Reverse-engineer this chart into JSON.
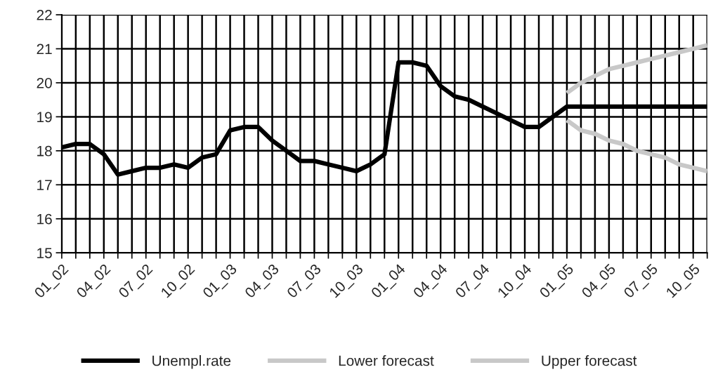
{
  "chart_data": {
    "type": "line",
    "categories": [
      "01_02",
      null,
      null,
      "04_02",
      null,
      null,
      "07_02",
      null,
      null,
      "10_02",
      null,
      null,
      "01_03",
      null,
      null,
      "04_03",
      null,
      null,
      "07_03",
      null,
      null,
      "10_03",
      null,
      null,
      "01_04",
      null,
      null,
      "04_04",
      null,
      null,
      "07_04",
      null,
      null,
      "10_04",
      null,
      null,
      "01_05",
      null,
      null,
      "04_05",
      null,
      null,
      "07_05",
      null,
      null,
      "10_05",
      null
    ],
    "series": [
      {
        "name": "Unempl.rate",
        "color": "#000000",
        "values": [
          18.1,
          18.2,
          18.2,
          17.9,
          17.3,
          17.4,
          17.5,
          17.5,
          17.6,
          17.5,
          17.8,
          17.9,
          18.6,
          18.7,
          18.7,
          18.3,
          18.0,
          17.7,
          17.7,
          17.6,
          17.5,
          17.4,
          17.6,
          17.9,
          20.6,
          20.6,
          20.5,
          19.9,
          19.6,
          19.5,
          19.3,
          19.1,
          18.9,
          18.7,
          18.7,
          19.0,
          19.3,
          19.3,
          19.3,
          19.3,
          19.3,
          19.3,
          19.3,
          19.3,
          19.3,
          19.3,
          19.3
        ]
      },
      {
        "name": "Lower forecast",
        "color": "#c8c8c8",
        "values": [
          null,
          null,
          null,
          null,
          null,
          null,
          null,
          null,
          null,
          null,
          null,
          null,
          null,
          null,
          null,
          null,
          null,
          null,
          null,
          null,
          null,
          null,
          null,
          null,
          null,
          null,
          null,
          null,
          null,
          null,
          null,
          null,
          null,
          null,
          null,
          null,
          18.9,
          18.6,
          18.5,
          18.3,
          18.2,
          18.0,
          17.9,
          17.8,
          17.6,
          17.5,
          17.4
        ]
      },
      {
        "name": "Upper forecast",
        "color": "#c8c8c8",
        "values": [
          null,
          null,
          null,
          null,
          null,
          null,
          null,
          null,
          null,
          null,
          null,
          null,
          null,
          null,
          null,
          null,
          null,
          null,
          null,
          null,
          null,
          null,
          null,
          null,
          null,
          null,
          null,
          null,
          null,
          null,
          null,
          null,
          null,
          null,
          null,
          null,
          19.7,
          20.0,
          20.2,
          20.4,
          20.5,
          20.6,
          20.7,
          20.8,
          20.9,
          21.0,
          21.1
        ]
      }
    ],
    "ylim": [
      15,
      22
    ],
    "yticks": [
      15,
      16,
      17,
      18,
      19,
      20,
      21,
      22
    ],
    "grid": true,
    "legend": "bottom"
  }
}
